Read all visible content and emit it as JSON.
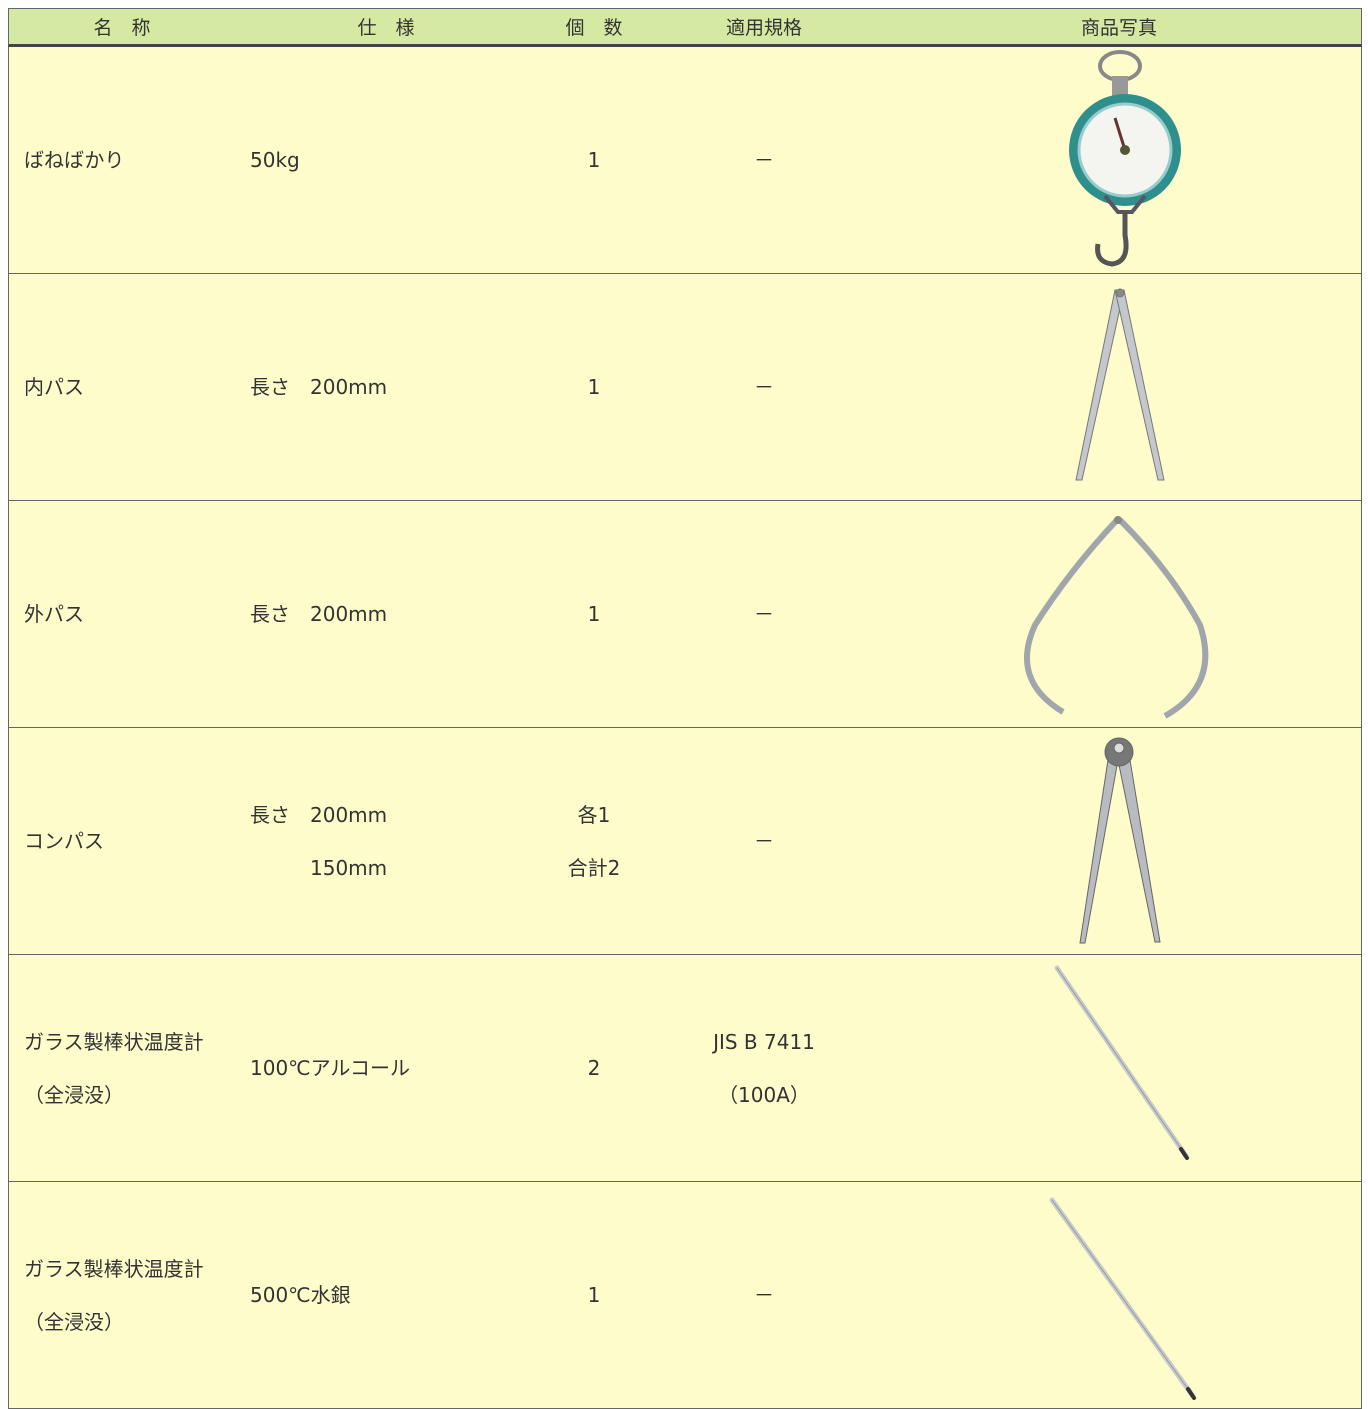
{
  "table": {
    "headers": [
      "名　称",
      "仕　様",
      "個　数",
      "適用規格",
      "商品写真"
    ],
    "rows": [
      {
        "name": [
          "ばねばかり"
        ],
        "spec": [
          "50kg"
        ],
        "count": [
          "1"
        ],
        "standard": [
          "－"
        ]
      },
      {
        "name": [
          "内パス"
        ],
        "spec": [
          "長さ　200mm"
        ],
        "count": [
          "1"
        ],
        "standard": [
          "－"
        ]
      },
      {
        "name": [
          "外パス"
        ],
        "spec": [
          "長さ　200mm"
        ],
        "count": [
          "1"
        ],
        "standard": [
          "－"
        ]
      },
      {
        "name": [
          "コンパス"
        ],
        "spec": [
          "長さ　200mm",
          "150mm"
        ],
        "count": [
          "各1",
          "合計2"
        ],
        "standard": [
          "－"
        ]
      },
      {
        "name": [
          "ガラス製棒状温度計",
          "（全浸没）"
        ],
        "spec": [
          "100℃アルコール"
        ],
        "count": [
          "2"
        ],
        "standard": [
          "JIS B 7411",
          "（100A）"
        ]
      },
      {
        "name": [
          "ガラス製棒状温度計",
          "（全浸没）"
        ],
        "spec": [
          "500℃水銀"
        ],
        "count": [
          "1"
        ],
        "standard": [
          "－"
        ]
      }
    ]
  }
}
